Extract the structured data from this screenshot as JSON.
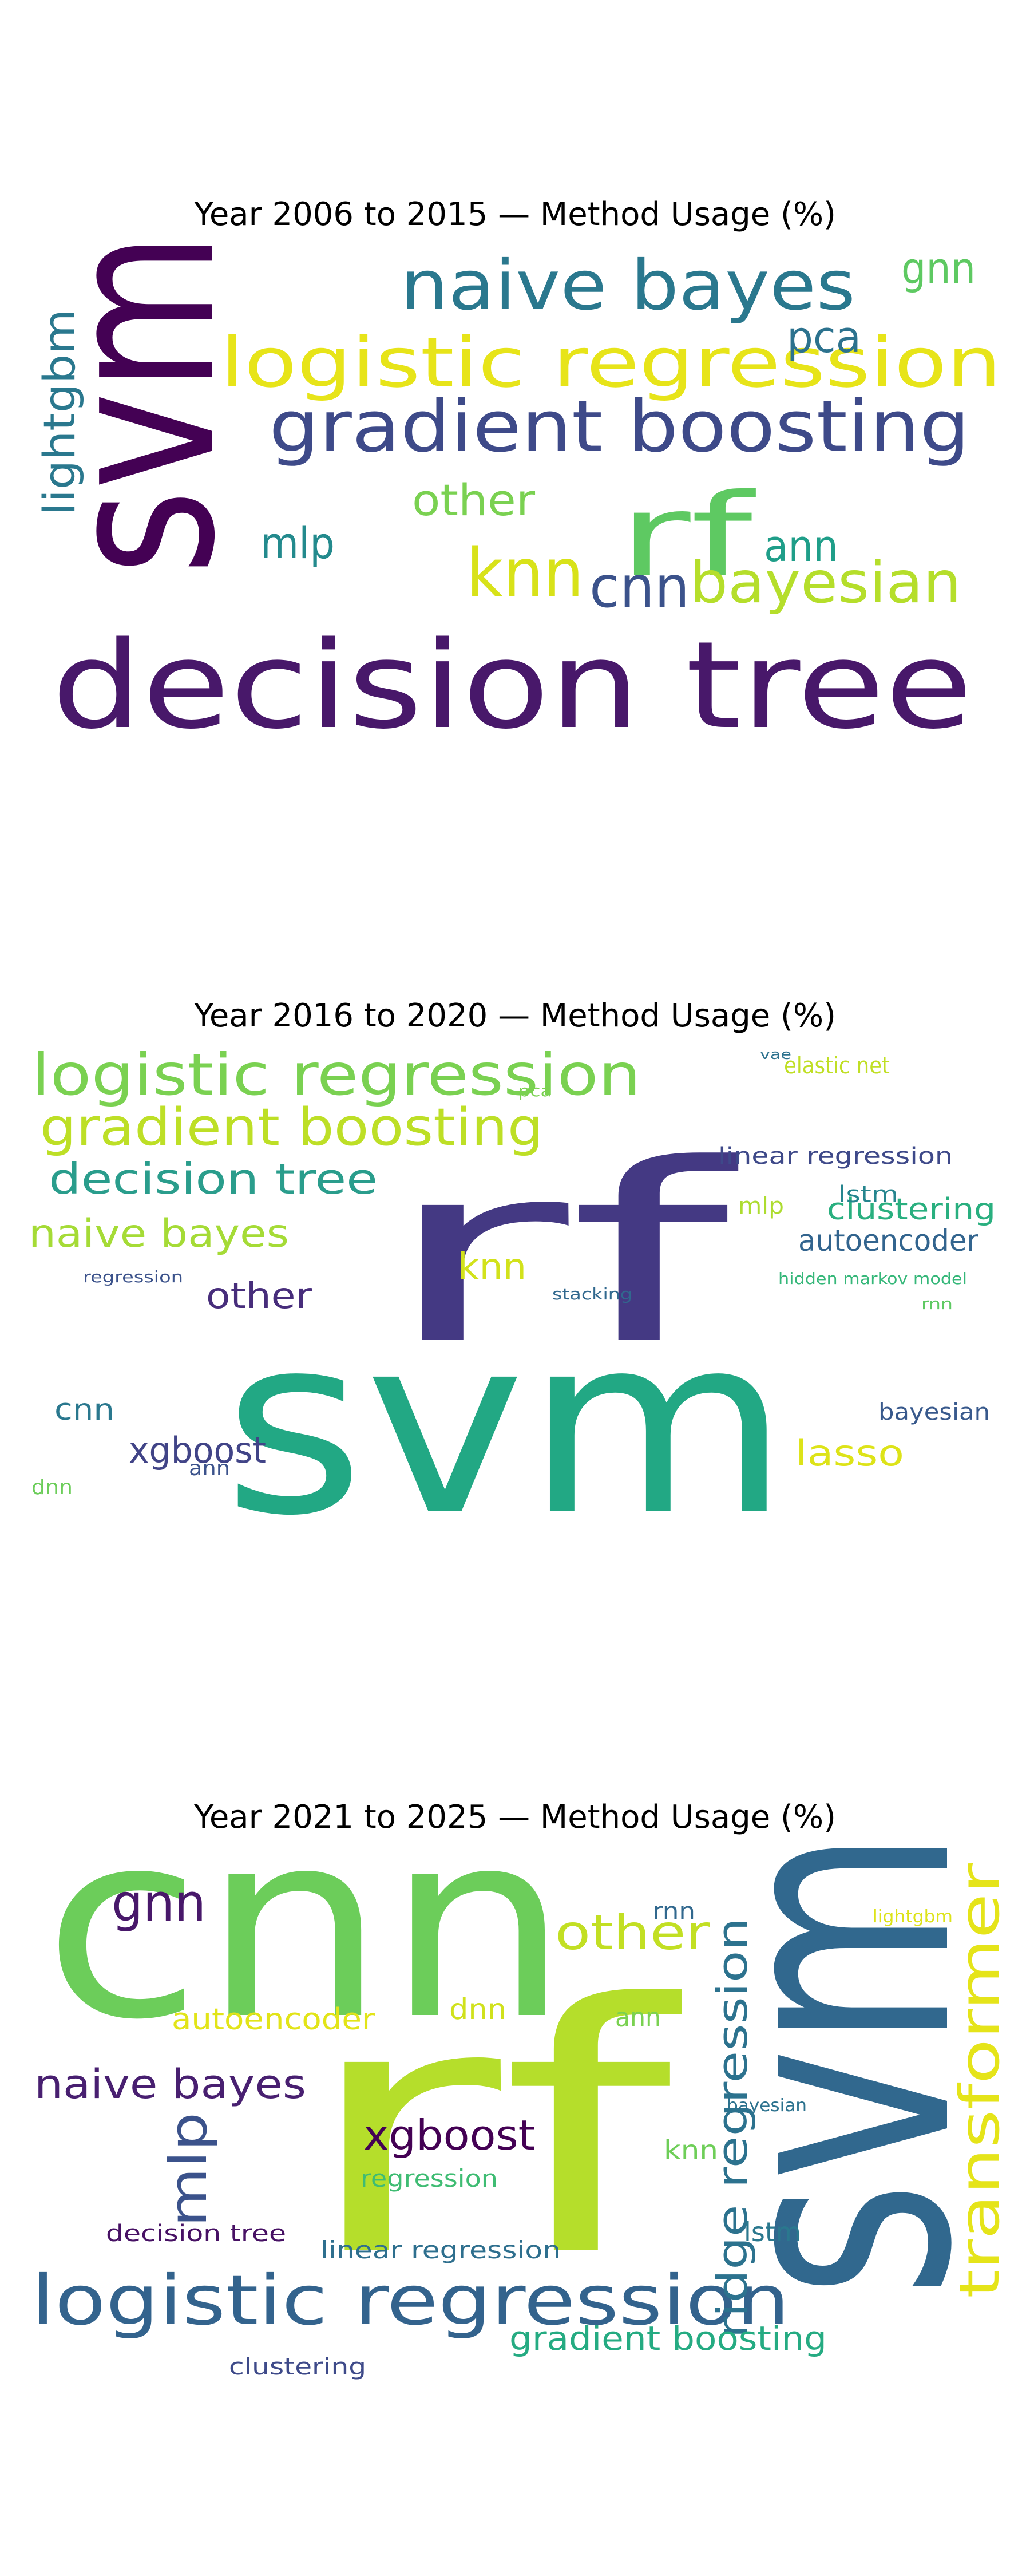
{
  "chart_data": [
    {
      "type": "wordcloud",
      "title": "Year 2006 to 2015 — Method Usage (%)",
      "words": [
        {
          "text": "svm",
          "color": "#440154"
        },
        {
          "text": "decision tree",
          "color": "#48186a"
        },
        {
          "text": "gradient boosting",
          "color": "#3e4a89"
        },
        {
          "text": "logistic regression",
          "color": "#e7e419"
        },
        {
          "text": "naive bayes",
          "color": "#2a788e"
        },
        {
          "text": "rf",
          "color": "#5ec962"
        },
        {
          "text": "knn",
          "color": "#d8e219"
        },
        {
          "text": "bayesian",
          "color": "#b5de2b"
        },
        {
          "text": "cnn",
          "color": "#3b528b"
        },
        {
          "text": "mlp",
          "color": "#238a8d"
        },
        {
          "text": "pca",
          "color": "#2c728e"
        },
        {
          "text": "other",
          "color": "#7ad151"
        },
        {
          "text": "ann",
          "color": "#1f9e89"
        },
        {
          "text": "gnn",
          "color": "#5ec962"
        },
        {
          "text": "lightgbm",
          "color": "#2a788e"
        }
      ]
    },
    {
      "type": "wordcloud",
      "title": "Year 2016 to 2020 — Method Usage (%)",
      "words": [
        {
          "text": "svm",
          "color": "#22a884"
        },
        {
          "text": "rf",
          "color": "#443983"
        },
        {
          "text": "logistic regression",
          "color": "#7ad151"
        },
        {
          "text": "gradient boosting",
          "color": "#bddf26"
        },
        {
          "text": "decision tree",
          "color": "#2a9d8c"
        },
        {
          "text": "naive bayes",
          "color": "#a5db36"
        },
        {
          "text": "knn",
          "color": "#d2e21b"
        },
        {
          "text": "other",
          "color": "#472d7b"
        },
        {
          "text": "xgboost",
          "color": "#414487"
        },
        {
          "text": "cnn",
          "color": "#2a788e"
        },
        {
          "text": "lasso",
          "color": "#dde318"
        },
        {
          "text": "autoencoder",
          "color": "#32648e"
        },
        {
          "text": "clustering",
          "color": "#29af7f"
        },
        {
          "text": "linear regression",
          "color": "#3e4989"
        },
        {
          "text": "elastic net",
          "color": "#c0df25"
        },
        {
          "text": "bayesian",
          "color": "#38598c"
        },
        {
          "text": "lstm",
          "color": "#25858e"
        },
        {
          "text": "mlp",
          "color": "#addc30"
        },
        {
          "text": "hidden markov model",
          "color": "#35b779"
        },
        {
          "text": "ann",
          "color": "#3b528b"
        },
        {
          "text": "dnn",
          "color": "#6ccd5a"
        },
        {
          "text": "stacking",
          "color": "#31688e"
        },
        {
          "text": "regression",
          "color": "#3b528b"
        },
        {
          "text": "rnn",
          "color": "#5ec962"
        },
        {
          "text": "pca",
          "color": "#7ad151"
        },
        {
          "text": "vae",
          "color": "#2c728e"
        }
      ]
    },
    {
      "type": "wordcloud",
      "title": "Year 2021 to 2025 — Method Usage (%)",
      "words": [
        {
          "text": "cnn",
          "color": "#6ccd5a"
        },
        {
          "text": "rf",
          "color": "#b5de2b"
        },
        {
          "text": "svm",
          "color": "#31688e"
        },
        {
          "text": "logistic regression",
          "color": "#33638d"
        },
        {
          "text": "transformer",
          "color": "#e5e419"
        },
        {
          "text": "ridge regression",
          "color": "#2c728e"
        },
        {
          "text": "xgboost",
          "color": "#440154"
        },
        {
          "text": "naive bayes",
          "color": "#481f70"
        },
        {
          "text": "mlp",
          "color": "#3b528b"
        },
        {
          "text": "gnn",
          "color": "#48186a"
        },
        {
          "text": "other",
          "color": "#c2df23"
        },
        {
          "text": "autoencoder",
          "color": "#e2e418"
        },
        {
          "text": "gradient boosting",
          "color": "#25ab82"
        },
        {
          "text": "dnn",
          "color": "#d0e11c"
        },
        {
          "text": "knn",
          "color": "#6ece58"
        },
        {
          "text": "ann",
          "color": "#7ad151"
        },
        {
          "text": "regression",
          "color": "#3fbc73"
        },
        {
          "text": "linear regression",
          "color": "#2e6f8e"
        },
        {
          "text": "decision tree",
          "color": "#471164"
        },
        {
          "text": "lstm",
          "color": "#2a788e"
        },
        {
          "text": "clustering",
          "color": "#3e4a89"
        },
        {
          "text": "rnn",
          "color": "#31688e"
        },
        {
          "text": "lightgbm",
          "color": "#dde318"
        },
        {
          "text": "bayesian",
          "color": "#2c728e"
        }
      ]
    }
  ]
}
